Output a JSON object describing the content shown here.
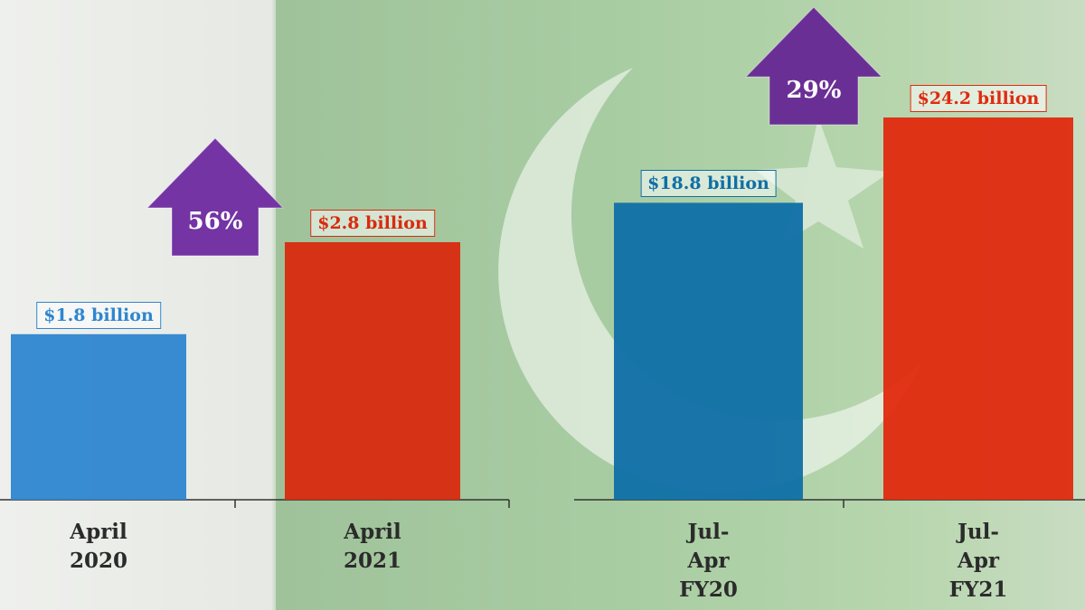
{
  "chart_data": [
    {
      "type": "bar",
      "categories": [
        "April 2020",
        "April 2021"
      ],
      "values": [
        1.8,
        2.8
      ],
      "value_labels": [
        "$1.8 billion",
        "$2.8 billion"
      ],
      "colors": [
        "#2e86d0",
        "#d92a0e"
      ],
      "annotation": "56%",
      "annotation_color": "#7434a4"
    },
    {
      "type": "bar",
      "categories": [
        "Jul-Apr FY20",
        "Jul-Apr FY21"
      ],
      "values": [
        18.8,
        24.2
      ],
      "value_labels": [
        "$18.8 billion",
        "$24.2 billion"
      ],
      "colors": [
        "#0f6fa6",
        "#e02a0e"
      ],
      "annotation": "29%",
      "annotation_color": "#6a2f94"
    }
  ]
}
